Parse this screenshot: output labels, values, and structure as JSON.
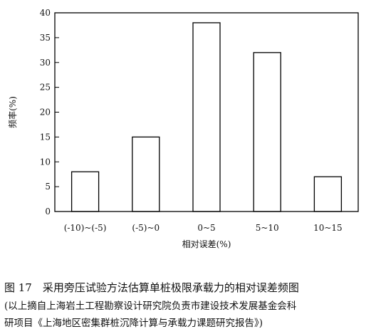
{
  "chart_data": {
    "type": "bar",
    "categories": [
      "(-10)~(-5)",
      "(-5)~0",
      "0~5",
      "5~10",
      "10~15"
    ],
    "values": [
      8,
      15,
      38,
      32,
      7
    ],
    "xlabel": "相对误差(%)",
    "ylabel": "频率(%)",
    "ylim": [
      0,
      40
    ],
    "yticks": [
      0,
      5,
      10,
      15,
      20,
      25,
      30,
      35,
      40
    ],
    "grid": false,
    "colors": {
      "bar_fill": "#ffffff",
      "bar_stroke": "#000000"
    }
  },
  "caption": {
    "main": "图 17　采用旁压试验方法估算单桩极限承载力的相对误差频图",
    "source_line1": "(以上摘自上海岩土工程勘察设计研究院负责市建设技术发展基金会科",
    "source_line2": "研项目《上海地区密集群桩沉降计算与承载力课题研究报告》)"
  }
}
